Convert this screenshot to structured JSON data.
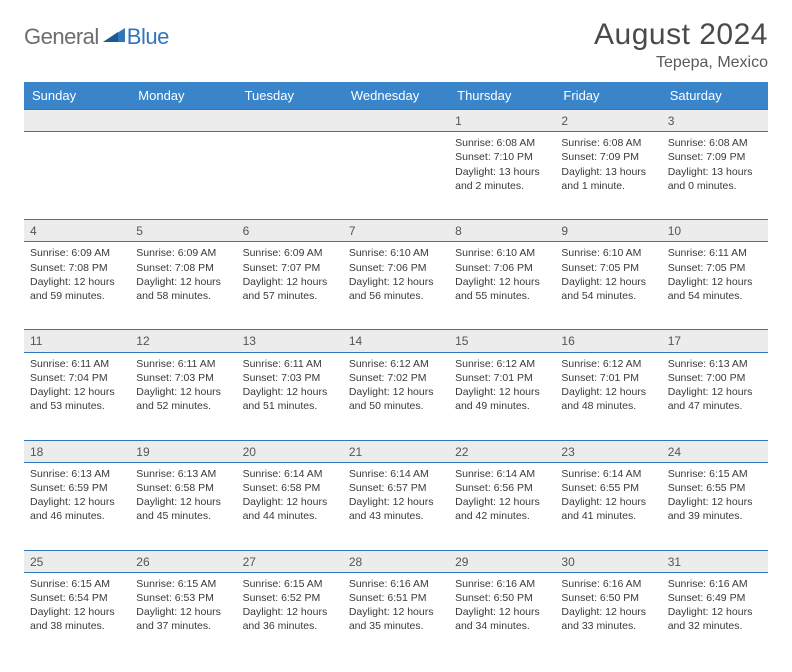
{
  "brand": {
    "word1": "General",
    "word2": "Blue",
    "color1": "#6d6d6d",
    "color2": "#2f76bb"
  },
  "title": "August 2024",
  "location": "Tepepa, Mexico",
  "colors": {
    "header_bg": "#3a85c9",
    "header_text": "#ffffff",
    "rule": "#2f76bb",
    "daynum_bg": "#ececec",
    "text": "#3a3a3a"
  },
  "day_headers": [
    "Sunday",
    "Monday",
    "Tuesday",
    "Wednesday",
    "Thursday",
    "Friday",
    "Saturday"
  ],
  "weeks": [
    [
      null,
      null,
      null,
      null,
      {
        "n": "1",
        "sr": "Sunrise: 6:08 AM",
        "ss": "Sunset: 7:10 PM",
        "dl1": "Daylight: 13 hours",
        "dl2": "and 2 minutes."
      },
      {
        "n": "2",
        "sr": "Sunrise: 6:08 AM",
        "ss": "Sunset: 7:09 PM",
        "dl1": "Daylight: 13 hours",
        "dl2": "and 1 minute."
      },
      {
        "n": "3",
        "sr": "Sunrise: 6:08 AM",
        "ss": "Sunset: 7:09 PM",
        "dl1": "Daylight: 13 hours",
        "dl2": "and 0 minutes."
      }
    ],
    [
      {
        "n": "4",
        "sr": "Sunrise: 6:09 AM",
        "ss": "Sunset: 7:08 PM",
        "dl1": "Daylight: 12 hours",
        "dl2": "and 59 minutes."
      },
      {
        "n": "5",
        "sr": "Sunrise: 6:09 AM",
        "ss": "Sunset: 7:08 PM",
        "dl1": "Daylight: 12 hours",
        "dl2": "and 58 minutes."
      },
      {
        "n": "6",
        "sr": "Sunrise: 6:09 AM",
        "ss": "Sunset: 7:07 PM",
        "dl1": "Daylight: 12 hours",
        "dl2": "and 57 minutes."
      },
      {
        "n": "7",
        "sr": "Sunrise: 6:10 AM",
        "ss": "Sunset: 7:06 PM",
        "dl1": "Daylight: 12 hours",
        "dl2": "and 56 minutes."
      },
      {
        "n": "8",
        "sr": "Sunrise: 6:10 AM",
        "ss": "Sunset: 7:06 PM",
        "dl1": "Daylight: 12 hours",
        "dl2": "and 55 minutes."
      },
      {
        "n": "9",
        "sr": "Sunrise: 6:10 AM",
        "ss": "Sunset: 7:05 PM",
        "dl1": "Daylight: 12 hours",
        "dl2": "and 54 minutes."
      },
      {
        "n": "10",
        "sr": "Sunrise: 6:11 AM",
        "ss": "Sunset: 7:05 PM",
        "dl1": "Daylight: 12 hours",
        "dl2": "and 54 minutes."
      }
    ],
    [
      {
        "n": "11",
        "sr": "Sunrise: 6:11 AM",
        "ss": "Sunset: 7:04 PM",
        "dl1": "Daylight: 12 hours",
        "dl2": "and 53 minutes."
      },
      {
        "n": "12",
        "sr": "Sunrise: 6:11 AM",
        "ss": "Sunset: 7:03 PM",
        "dl1": "Daylight: 12 hours",
        "dl2": "and 52 minutes."
      },
      {
        "n": "13",
        "sr": "Sunrise: 6:11 AM",
        "ss": "Sunset: 7:03 PM",
        "dl1": "Daylight: 12 hours",
        "dl2": "and 51 minutes."
      },
      {
        "n": "14",
        "sr": "Sunrise: 6:12 AM",
        "ss": "Sunset: 7:02 PM",
        "dl1": "Daylight: 12 hours",
        "dl2": "and 50 minutes."
      },
      {
        "n": "15",
        "sr": "Sunrise: 6:12 AM",
        "ss": "Sunset: 7:01 PM",
        "dl1": "Daylight: 12 hours",
        "dl2": "and 49 minutes."
      },
      {
        "n": "16",
        "sr": "Sunrise: 6:12 AM",
        "ss": "Sunset: 7:01 PM",
        "dl1": "Daylight: 12 hours",
        "dl2": "and 48 minutes."
      },
      {
        "n": "17",
        "sr": "Sunrise: 6:13 AM",
        "ss": "Sunset: 7:00 PM",
        "dl1": "Daylight: 12 hours",
        "dl2": "and 47 minutes."
      }
    ],
    [
      {
        "n": "18",
        "sr": "Sunrise: 6:13 AM",
        "ss": "Sunset: 6:59 PM",
        "dl1": "Daylight: 12 hours",
        "dl2": "and 46 minutes."
      },
      {
        "n": "19",
        "sr": "Sunrise: 6:13 AM",
        "ss": "Sunset: 6:58 PM",
        "dl1": "Daylight: 12 hours",
        "dl2": "and 45 minutes."
      },
      {
        "n": "20",
        "sr": "Sunrise: 6:14 AM",
        "ss": "Sunset: 6:58 PM",
        "dl1": "Daylight: 12 hours",
        "dl2": "and 44 minutes."
      },
      {
        "n": "21",
        "sr": "Sunrise: 6:14 AM",
        "ss": "Sunset: 6:57 PM",
        "dl1": "Daylight: 12 hours",
        "dl2": "and 43 minutes."
      },
      {
        "n": "22",
        "sr": "Sunrise: 6:14 AM",
        "ss": "Sunset: 6:56 PM",
        "dl1": "Daylight: 12 hours",
        "dl2": "and 42 minutes."
      },
      {
        "n": "23",
        "sr": "Sunrise: 6:14 AM",
        "ss": "Sunset: 6:55 PM",
        "dl1": "Daylight: 12 hours",
        "dl2": "and 41 minutes."
      },
      {
        "n": "24",
        "sr": "Sunrise: 6:15 AM",
        "ss": "Sunset: 6:55 PM",
        "dl1": "Daylight: 12 hours",
        "dl2": "and 39 minutes."
      }
    ],
    [
      {
        "n": "25",
        "sr": "Sunrise: 6:15 AM",
        "ss": "Sunset: 6:54 PM",
        "dl1": "Daylight: 12 hours",
        "dl2": "and 38 minutes."
      },
      {
        "n": "26",
        "sr": "Sunrise: 6:15 AM",
        "ss": "Sunset: 6:53 PM",
        "dl1": "Daylight: 12 hours",
        "dl2": "and 37 minutes."
      },
      {
        "n": "27",
        "sr": "Sunrise: 6:15 AM",
        "ss": "Sunset: 6:52 PM",
        "dl1": "Daylight: 12 hours",
        "dl2": "and 36 minutes."
      },
      {
        "n": "28",
        "sr": "Sunrise: 6:16 AM",
        "ss": "Sunset: 6:51 PM",
        "dl1": "Daylight: 12 hours",
        "dl2": "and 35 minutes."
      },
      {
        "n": "29",
        "sr": "Sunrise: 6:16 AM",
        "ss": "Sunset: 6:50 PM",
        "dl1": "Daylight: 12 hours",
        "dl2": "and 34 minutes."
      },
      {
        "n": "30",
        "sr": "Sunrise: 6:16 AM",
        "ss": "Sunset: 6:50 PM",
        "dl1": "Daylight: 12 hours",
        "dl2": "and 33 minutes."
      },
      {
        "n": "31",
        "sr": "Sunrise: 6:16 AM",
        "ss": "Sunset: 6:49 PM",
        "dl1": "Daylight: 12 hours",
        "dl2": "and 32 minutes."
      }
    ]
  ]
}
